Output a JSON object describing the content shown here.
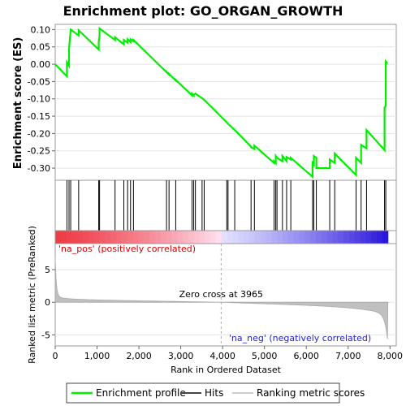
{
  "chart_data": {
    "type": "line",
    "title": "Enrichment plot: GO_ORGAN_GROWTH",
    "es_panel": {
      "ylabel": "Enrichment score (ES)",
      "ylim": [
        -0.335,
        0.115
      ],
      "yticks": [
        0.1,
        0.05,
        0.0,
        -0.05,
        -0.1,
        -0.15,
        -0.2,
        -0.25,
        -0.3
      ],
      "ytick_labels": [
        "0.10",
        "0.05",
        "0.00",
        "-0.05",
        "-0.10",
        "-0.15",
        "-0.20",
        "-0.25",
        "-0.30"
      ],
      "series_name": "Enrichment profile",
      "color": "#00ee00",
      "x": [
        0,
        280,
        280,
        330,
        330,
        370,
        370,
        560,
        560,
        1040,
        1040,
        1060,
        1060,
        1430,
        1430,
        1640,
        1640,
        1730,
        1730,
        1800,
        1800,
        1870,
        1870,
        2660,
        2660,
        2720,
        2720,
        2880,
        2880,
        3270,
        3270,
        3310,
        3310,
        3350,
        3350,
        3510,
        3510,
        3560,
        3560,
        4100,
        4100,
        4130,
        4130,
        4290,
        4290,
        4680,
        4680,
        4760,
        4760,
        5230,
        5230,
        5270,
        5270,
        5300,
        5300,
        5430,
        5430,
        5530,
        5530,
        5630,
        5630,
        6150,
        6150,
        6180,
        6180,
        6240,
        6240,
        6560,
        6560,
        6680,
        6680,
        7190,
        7190,
        7310,
        7310,
        7440,
        7440,
        7870,
        7870,
        7900,
        7900,
        7940
      ],
      "y": [
        0.0,
        -0.035,
        0.005,
        -0.005,
        0.045,
        0.1,
        0.1,
        0.083,
        0.098,
        0.042,
        0.065,
        0.082,
        0.103,
        0.07,
        0.078,
        0.057,
        0.07,
        0.062,
        0.072,
        0.064,
        0.072,
        0.066,
        0.07,
        -0.023,
        -0.022,
        -0.03,
        -0.028,
        -0.047,
        -0.045,
        -0.09,
        -0.085,
        -0.09,
        -0.088,
        -0.085,
        -0.085,
        -0.098,
        -0.098,
        -0.103,
        -0.103,
        -0.168,
        -0.168,
        -0.172,
        -0.172,
        -0.19,
        -0.19,
        -0.238,
        -0.24,
        -0.245,
        -0.235,
        -0.285,
        -0.28,
        -0.285,
        -0.265,
        -0.27,
        -0.27,
        -0.28,
        -0.265,
        -0.28,
        -0.268,
        -0.275,
        -0.27,
        -0.325,
        -0.28,
        -0.295,
        -0.265,
        -0.27,
        -0.3,
        -0.3,
        -0.275,
        -0.285,
        -0.258,
        -0.32,
        -0.27,
        -0.285,
        -0.233,
        -0.243,
        -0.19,
        -0.248,
        -0.125,
        -0.12,
        0.008,
        0.002
      ]
    },
    "hits": [
      280,
      330,
      370,
      560,
      1040,
      1060,
      1430,
      1640,
      1730,
      1800,
      1870,
      2660,
      2720,
      2880,
      3270,
      3310,
      3350,
      3510,
      3560,
      4100,
      4130,
      4290,
      4680,
      4760,
      5230,
      5270,
      5300,
      5430,
      5530,
      5630,
      6150,
      6180,
      6240,
      6560,
      6680,
      7190,
      7310,
      7440,
      7870,
      7900
    ],
    "legend_hits": "Hits",
    "heatmap": {
      "label_pos": "'na_pos' (positively correlated)",
      "label_neg": "'na_neg' (negatively correlated)"
    },
    "metric_panel": {
      "ylabel": "Ranked list metric (PreRanked)",
      "xlabel": "Rank in Ordered Dataset",
      "ylim": [
        -6.7,
        9.0
      ],
      "yticks": [
        5,
        0,
        -5
      ],
      "ytick_labels": [
        "5",
        "0",
        "-5"
      ],
      "series_name": "Ranking metric scores",
      "zero_cross_label": "Zero cross at 3965",
      "zero_cross": 3965
    },
    "xlim": [
      0,
      8150
    ],
    "xticks": [
      0,
      1000,
      2000,
      3000,
      4000,
      5000,
      6000,
      7000,
      8000
    ],
    "xtick_labels": [
      "0",
      "1,000",
      "2,000",
      "3,000",
      "4,000",
      "5,000",
      "6,000",
      "7,000",
      "8,000"
    ],
    "n_genes": 7950
  },
  "legend": {
    "profile": "Enrichment profile",
    "hits": "Hits",
    "metric": "Ranking metric scores"
  }
}
